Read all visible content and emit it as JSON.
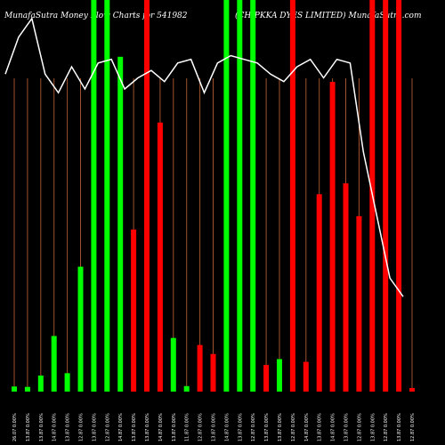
{
  "header": {
    "left_title": "MunafaSutra  Money Flow  Charts for 541982",
    "right_title": "(CHIPKKA DYES LIMITED) MunafaSutra.com"
  },
  "colors": {
    "background": "#000000",
    "up": "#00ff00",
    "down": "#ff0000",
    "gridline": "#a0522d",
    "price_line": "#ffffff",
    "label": "#ffffff"
  },
  "chart_data": {
    "type": "bar",
    "title": "MunafaSutra  Money Flow  Charts for 541982",
    "subtitle": "(CHIPKKA DYES LIMITED) MunafaSutra.com",
    "categories": [
      "26.07 0.00%",
      "13.87 0.00%",
      "13.87 0.00%",
      "14.87 0.00%",
      "13.87 0.00%",
      "12.87 0.00%",
      "13.87 0.00%",
      "12.87 0.00%",
      "14.87 0.00%",
      "13.87 0.00%",
      "13.87 0.00%",
      "14.87 0.00%",
      "13.87 0.00%",
      "11.87 0.00%",
      "12.87 0.00%",
      "13.87 0.00%",
      "14.87 0.00%",
      "13.87 0.00%",
      "12.87 0.00%",
      "13.87 0.00%",
      "13.87 0.00%",
      "12.87 0.00%",
      "14.87 0.00%",
      "13.87 0.00%",
      "14.87 0.00%",
      "13.87 0.00%",
      "12.87 0.00%",
      "13.87 0.00%",
      "12.87 0.00%",
      "13.87 0.00%",
      "12.87 0.00%"
    ],
    "series": [
      {
        "values": [
          1.3,
          1.2,
          4.1,
          14.2,
          4.7,
          31.9,
          100,
          100,
          85.5,
          41.4,
          100,
          68.7,
          13.7,
          1.4,
          11.9,
          9.6,
          100,
          100,
          100,
          6.8,
          8.3,
          100,
          7.6,
          50.4,
          79.1,
          53.2,
          44.8,
          100,
          100,
          100,
          0.9
        ],
        "direction": [
          "up",
          "up",
          "up",
          "up",
          "up",
          "up",
          "up",
          "up",
          "up",
          "down",
          "down",
          "down",
          "up",
          "up",
          "down",
          "down",
          "up",
          "up",
          "up",
          "down",
          "up",
          "down",
          "down",
          "down",
          "down",
          "down",
          "down",
          "down",
          "down",
          "down",
          "down"
        ]
      }
    ],
    "price_line": [
      100,
      110,
      115,
      100,
      95,
      102,
      96,
      103,
      104,
      96,
      99,
      101,
      98,
      103,
      104,
      95,
      103,
      105,
      104,
      103,
      100,
      98,
      102,
      104,
      99,
      104,
      103,
      79,
      62,
      45,
      40
    ],
    "ylim": [
      0,
      100
    ],
    "grid": true,
    "legend": "none"
  }
}
